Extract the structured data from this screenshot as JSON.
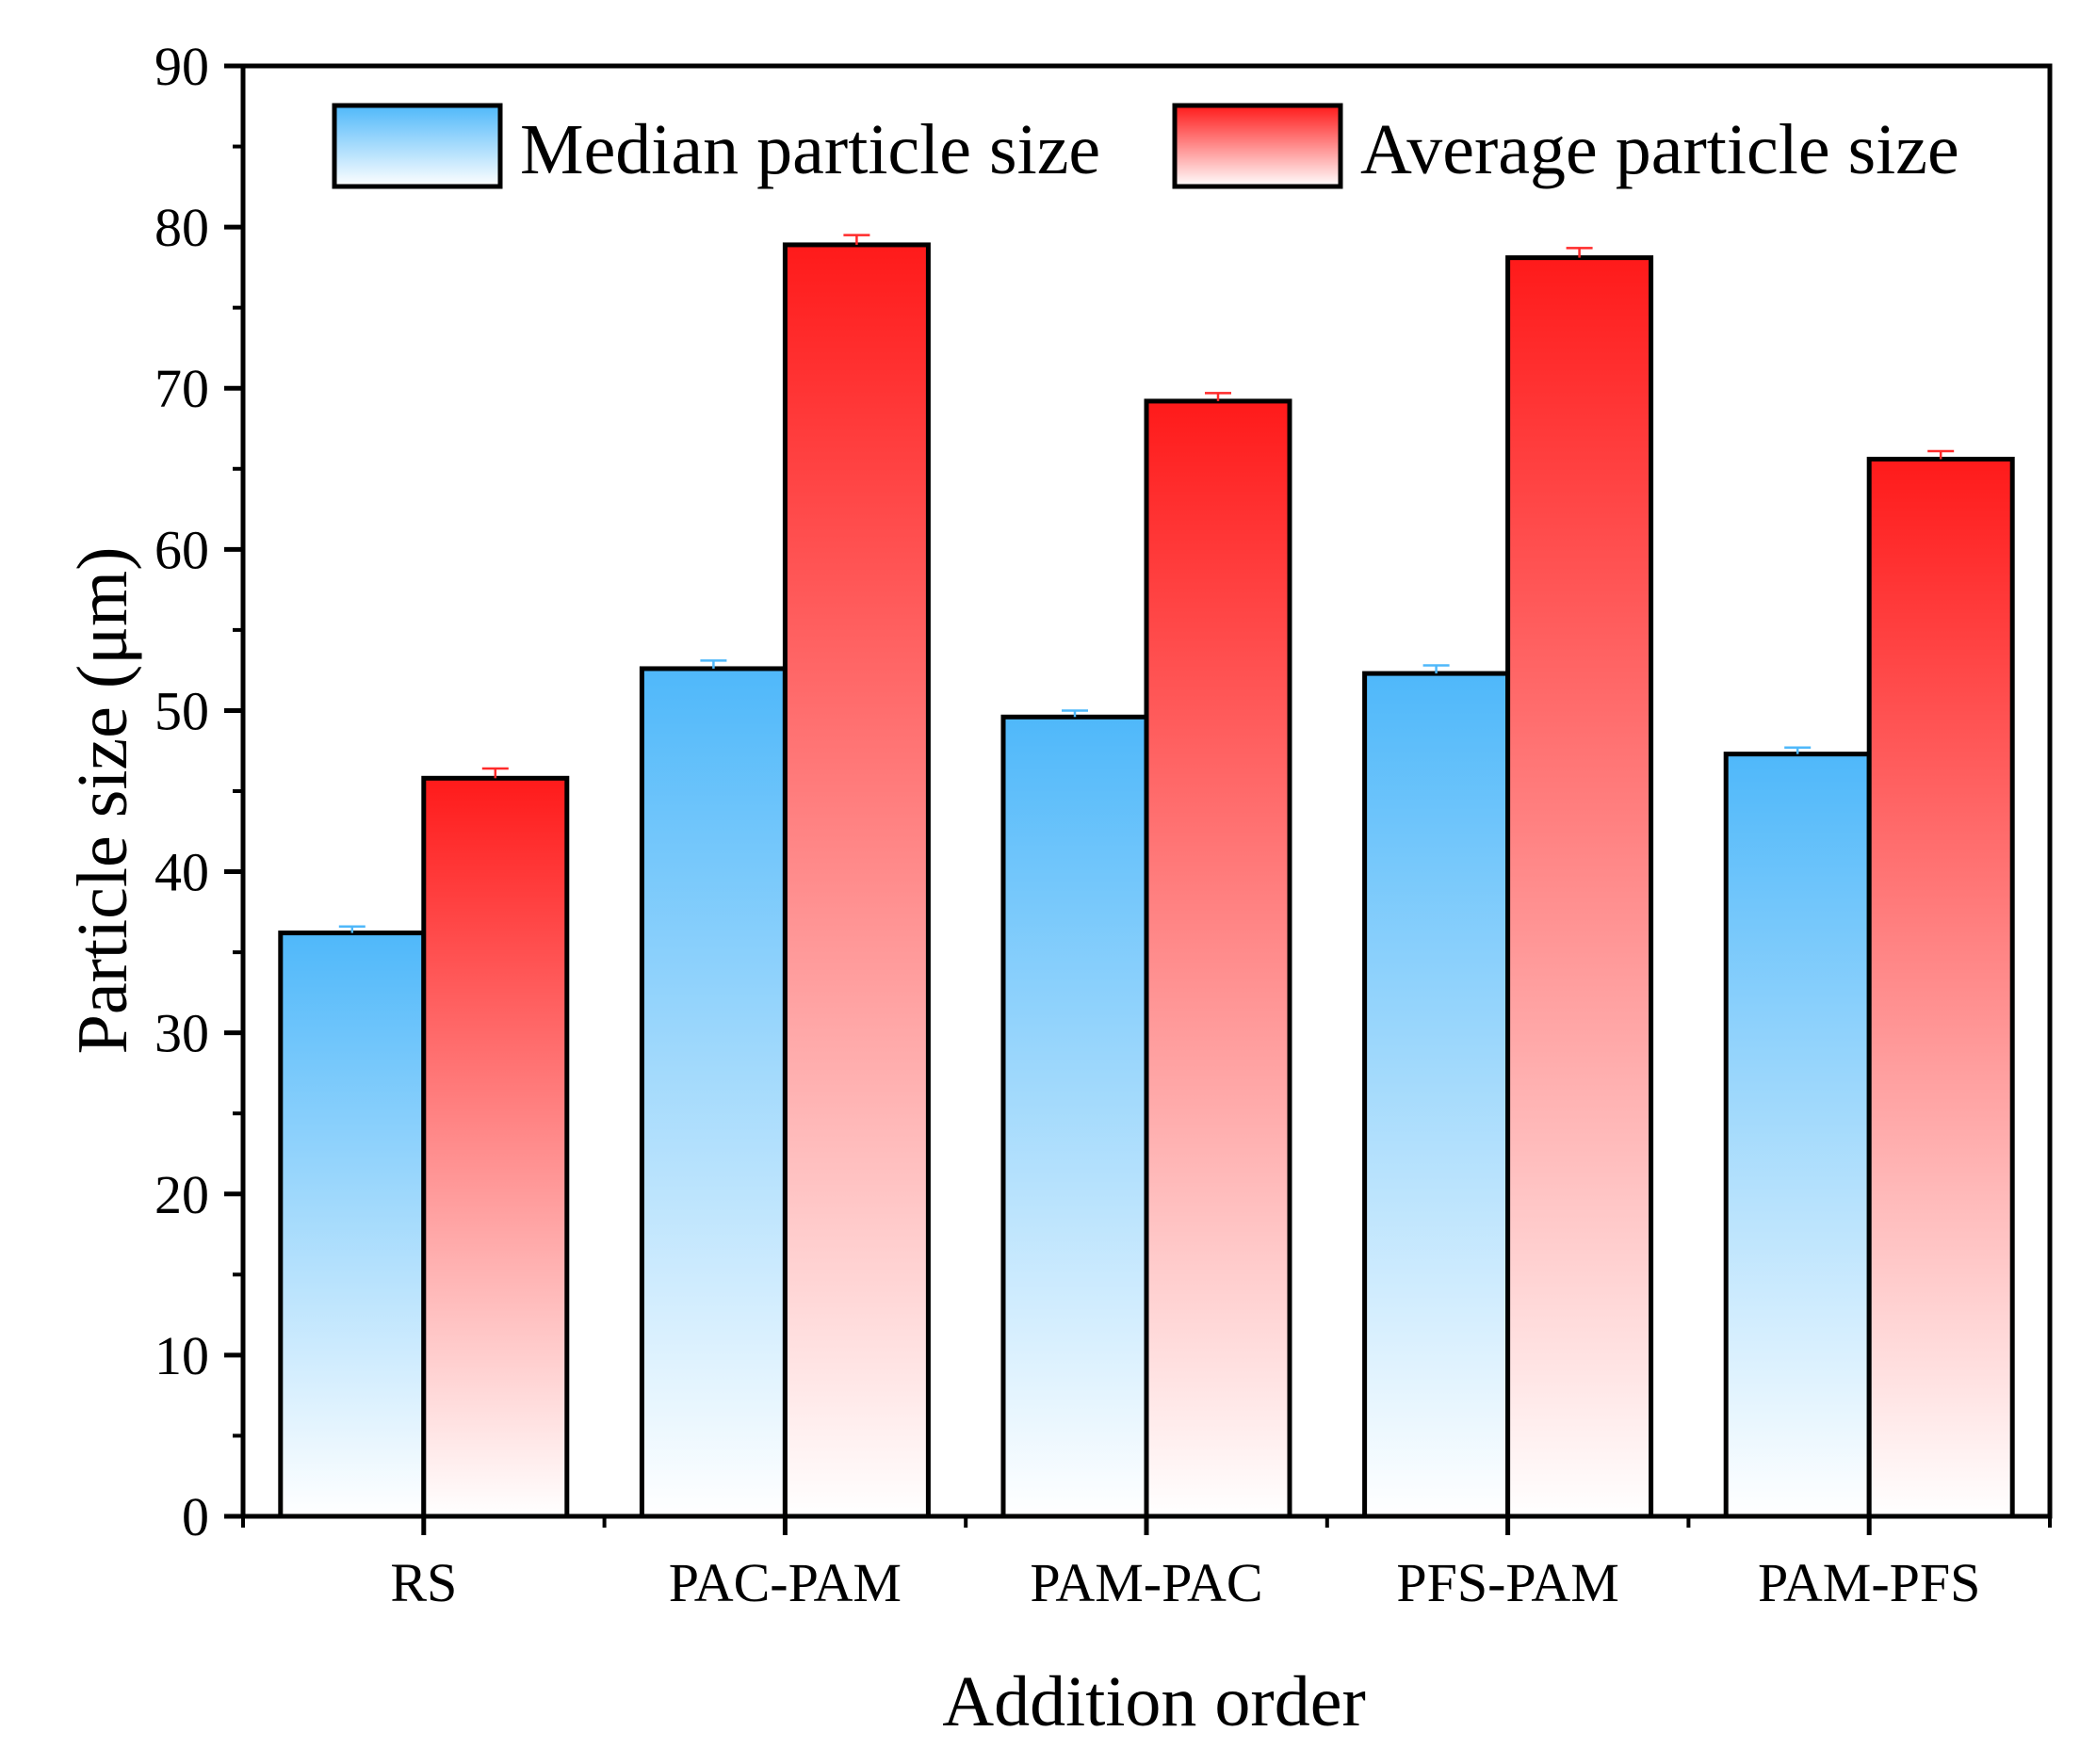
{
  "chart_data": {
    "type": "bar",
    "title": "",
    "xlabel": "Addition order",
    "ylabel": "Particle size (μm)",
    "ylim": [
      0,
      90
    ],
    "yticks": [
      0,
      10,
      20,
      30,
      40,
      50,
      60,
      70,
      80,
      90
    ],
    "grid": false,
    "legend_position": "top",
    "categories": [
      "RS",
      "PAC-PAM",
      "PAM-PAC",
      "PFS-PAM",
      "PAM-PFS"
    ],
    "series": [
      {
        "name": "Median particle size",
        "values": [
          36.2,
          52.6,
          49.6,
          52.3,
          47.3
        ],
        "errors": [
          0.4,
          0.5,
          0.4,
          0.5,
          0.4
        ],
        "color_top": "#4fb8fa",
        "color_bottom": "#ffffff",
        "error_color": "#4fb8fa"
      },
      {
        "name": "Average particle size",
        "values": [
          45.8,
          78.9,
          69.2,
          78.1,
          65.6
        ],
        "errors": [
          0.6,
          0.6,
          0.5,
          0.6,
          0.5
        ],
        "color_top": "#ff1a1a",
        "color_bottom": "#ffffff",
        "error_color": "#ff2a2a"
      }
    ]
  }
}
